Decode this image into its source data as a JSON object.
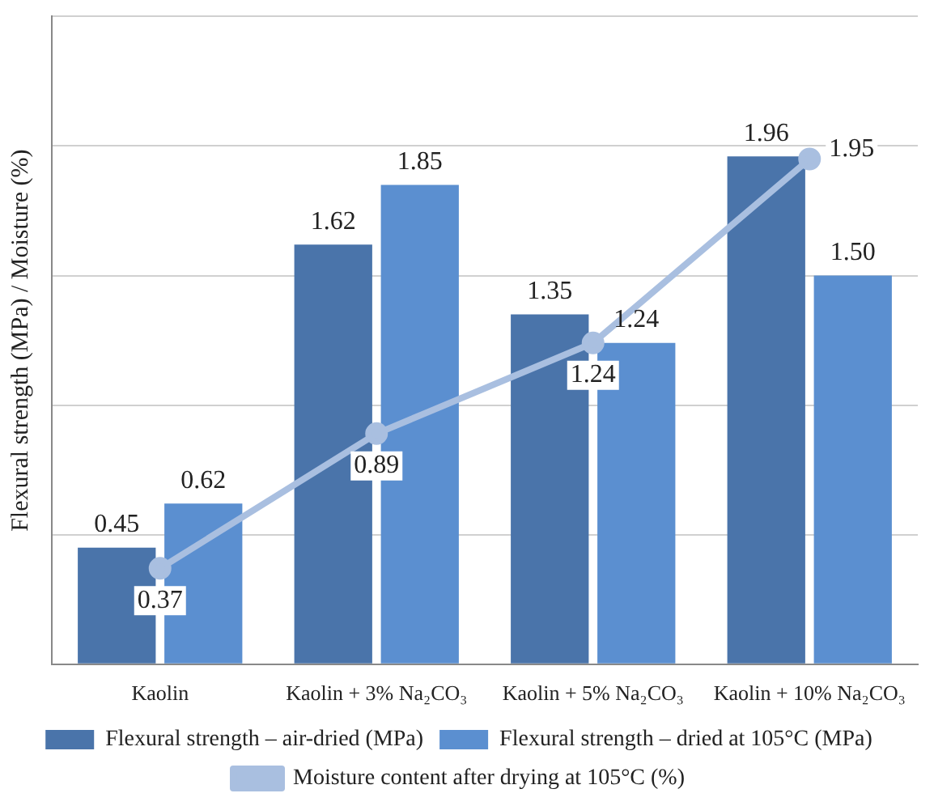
{
  "chart_data": {
    "type": "bar",
    "ylabel": "Flexural strength (MPa) / Moisture (%)",
    "categories": [
      "Kaolin",
      "Kaolin + 3% Na₂CO₃",
      "Kaolin + 5% Na₂CO₃",
      "Kaolin + 10% Na₂CO₃"
    ],
    "series": [
      {
        "name": "Flexural strength – air-dried (MPa)",
        "color": "#4a74aa",
        "values": [
          0.45,
          1.62,
          1.35,
          1.96
        ],
        "value_labels": [
          "0.45",
          "1.62",
          "1.35",
          "1.96"
        ]
      },
      {
        "name": "Flexural strength – dried at 105°C (MPa)",
        "color": "#5b8fd0",
        "values": [
          0.62,
          1.85,
          1.24,
          1.5
        ],
        "value_labels": [
          "0.62",
          "1.85",
          "1.24",
          "1.50"
        ]
      },
      {
        "name": "Moisture content after drying at 105°C (%)",
        "type": "line",
        "color": "#a9bfe0",
        "values": [
          0.37,
          0.89,
          1.24,
          1.95
        ],
        "value_labels": [
          "0.37",
          "0.89",
          "1.24",
          "1.95"
        ]
      }
    ],
    "ylim": [
      0,
      2.5
    ],
    "yticks": [
      {
        "value": 0,
        "label": null
      },
      {
        "value": 0.5,
        "label": null
      },
      {
        "value": 1,
        "label": null
      },
      {
        "value": 1.5,
        "label": null
      },
      {
        "value": 2,
        "label": null
      },
      {
        "value": 2.5,
        "label": null
      }
    ],
    "grid": "y",
    "legend": "bottom",
    "marker": "circle",
    "line_style": "solid"
  }
}
